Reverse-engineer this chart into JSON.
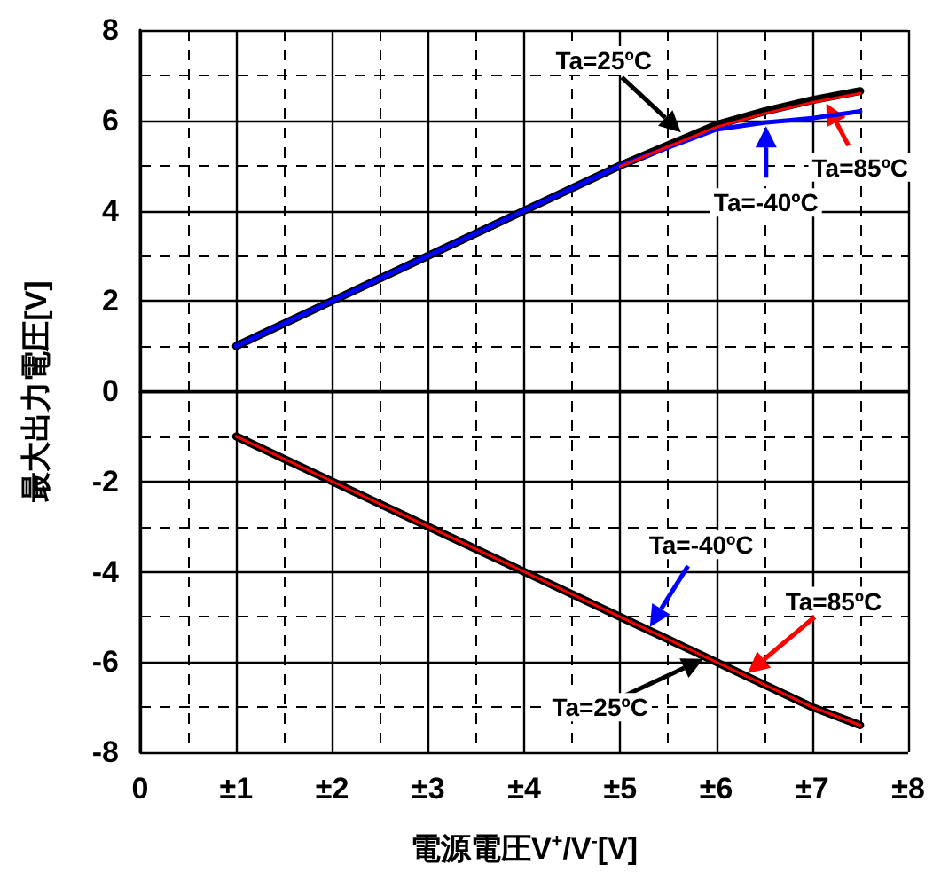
{
  "chart_data": {
    "type": "line",
    "xlabel": "電源電圧V$^{+}$/V$^{-}$[V]",
    "ylabel": "最大出力電圧[V]",
    "xlim": [
      0,
      8
    ],
    "xticks": [
      0,
      {
        "value": 1,
        "label": "±1"
      },
      {
        "value": 2,
        "label": "±2"
      },
      {
        "value": 3,
        "label": "±3"
      },
      {
        "value": 4,
        "label": "±4"
      },
      {
        "value": 5,
        "label": "±5"
      },
      {
        "value": 6,
        "label": "±6"
      },
      {
        "value": 7,
        "label": "±7"
      },
      {
        "value": 8,
        "label": "±8"
      }
    ],
    "ylim": [
      -8,
      8
    ],
    "yticks": [
      -8,
      -6,
      -4,
      -2,
      0,
      2,
      4,
      6,
      8
    ],
    "grid": true,
    "marker": "none",
    "line_style": "solid",
    "series": [
      {
        "color": "#000000",
        "x": [
          1,
          2,
          3,
          4,
          5,
          5.5,
          6,
          6.5,
          7,
          7.5
        ],
        "values": [
          1,
          2,
          3,
          4,
          5,
          5.45,
          5.9,
          6.2,
          6.45,
          6.65
        ]
      },
      {
        "color": "#0000ff",
        "x": [
          1,
          2,
          3,
          4,
          5,
          5.5,
          6,
          6.5,
          7,
          7.5
        ],
        "values": [
          1,
          2,
          3,
          4,
          5,
          5.4,
          5.8,
          5.95,
          6.05,
          6.2
        ]
      },
      {
        "color": "#ff0000",
        "x": [
          5,
          5.5,
          6,
          6.5,
          7,
          7.5
        ],
        "values": [
          4.98,
          5.42,
          5.85,
          6.15,
          6.4,
          6.6
        ]
      },
      {
        "color": "#000000",
        "x": [
          1,
          2,
          3,
          4,
          5,
          6,
          7,
          7.5
        ],
        "values": [
          -1,
          -2,
          -3,
          -4,
          -5,
          -6,
          -7,
          -7.4
        ]
      },
      {
        "color": "#ff0000",
        "x": [
          1,
          2,
          3,
          4,
          5,
          6,
          7,
          7.5
        ],
        "values": [
          -1,
          -2,
          -3,
          -4,
          -5,
          -6,
          -7,
          -7.4
        ]
      }
    ],
    "annotations": [
      {
        "text": "Ta=25ºC",
        "x": 5.66,
        "y": 5.68
      },
      {
        "text": "Ta=85ºC",
        "x": 7.13,
        "y": 6.45
      },
      {
        "text": "Ta=-40ºC",
        "x": 6.52,
        "y": 5.95
      },
      {
        "text": "Ta=-40ºC",
        "x": 5.29,
        "y": -5.29
      },
      {
        "text": "Ta=85ºC",
        "x": 6.3,
        "y": -6.3
      },
      {
        "text": "Ta=25ºC",
        "x": 5.9,
        "y": -5.9
      }
    ]
  }
}
